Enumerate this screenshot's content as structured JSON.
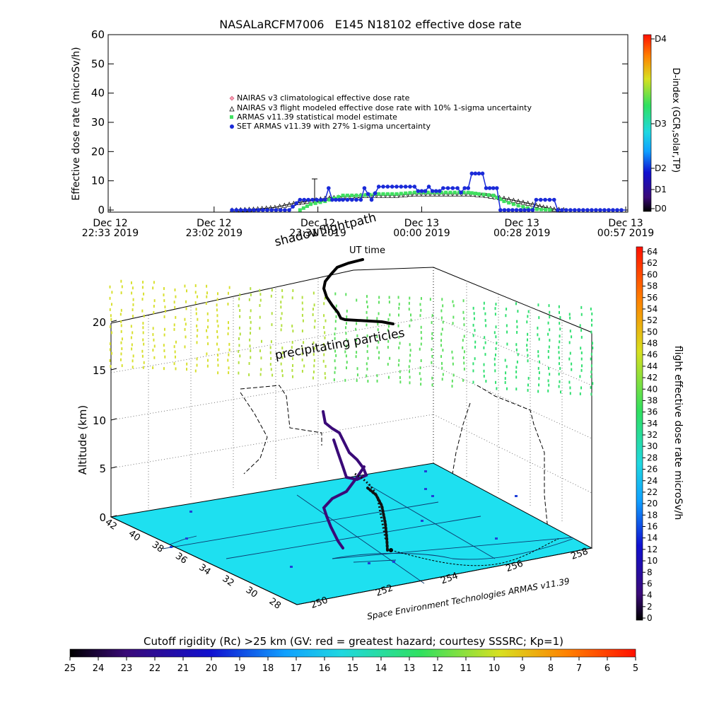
{
  "chart_data": [
    {
      "type": "line",
      "title": "NASALaRCFM7006   E145 N18102 effective dose rate",
      "ylabel": "Effective dose rate (microSv/h)",
      "ylim": [
        0,
        60
      ],
      "yticks": [
        "0",
        "10",
        "20",
        "30",
        "40",
        "50",
        "60"
      ],
      "xticks": [
        {
          "l1": "Dec 12",
          "l2": "22:33 2019"
        },
        {
          "l1": "Dec 12",
          "l2": "23:02 2019"
        },
        {
          "l1": "Dec 12",
          "l2": "23:31 2019"
        },
        {
          "l1": "Dec 13",
          "l2": "00:00 2019"
        },
        {
          "l1": "Dec 13",
          "l2": "00:28 2019"
        },
        {
          "l1": "Dec 13",
          "l2": "00:57 2019"
        }
      ],
      "legend": [
        {
          "label": "NAIRAS v3 climatological effective dose rate",
          "symbol": "pink-diamond"
        },
        {
          "label": "NAIRAS v3 flight modeled effective dose rate with 10% 1-sigma uncertainty",
          "symbol": "triangle"
        },
        {
          "label": "ARMAS v11.39 statistical model estimate",
          "symbol": "green-square"
        },
        {
          "label": "SET ARMAS v11.39 with 27% 1-sigma uncertainty",
          "symbol": "blue-dot"
        }
      ],
      "x_minutes_from_start": [
        0,
        29,
        58,
        87,
        115,
        144
      ],
      "series": [
        {
          "name": "NAIRAS v3 flight modeled effective dose rate with 10% 1-sigma uncertainty",
          "points": [
            [
              34,
              0
            ],
            [
              40,
              0.3
            ],
            [
              46,
              0.9
            ],
            [
              50,
              2
            ],
            [
              55,
              3
            ],
            [
              60,
              4
            ],
            [
              65,
              4.5
            ],
            [
              70,
              5
            ],
            [
              75,
              5
            ],
            [
              80,
              5
            ],
            [
              85,
              5.5
            ],
            [
              90,
              5.5
            ],
            [
              95,
              5.5
            ],
            [
              100,
              5.5
            ],
            [
              105,
              5
            ],
            [
              110,
              4
            ],
            [
              114,
              3
            ],
            [
              118,
              2
            ],
            [
              121,
              1
            ],
            [
              124,
              0.3
            ],
            [
              128,
              0
            ]
          ]
        },
        {
          "name": "ARMAS v11.39 statistical model estimate",
          "points": [
            [
              53,
              0
            ],
            [
              56,
              2
            ],
            [
              60,
              3
            ],
            [
              65,
              5
            ],
            [
              70,
              5
            ],
            [
              75,
              5.5
            ],
            [
              80,
              5.5
            ],
            [
              85,
              6
            ],
            [
              90,
              6
            ],
            [
              95,
              6
            ],
            [
              100,
              6
            ],
            [
              103,
              5.5
            ],
            [
              107,
              5
            ],
            [
              110,
              3
            ],
            [
              114,
              1.5
            ],
            [
              118,
              0.3
            ],
            [
              124,
              0
            ]
          ]
        },
        {
          "name": "SET ARMAS v11.39 with 27% 1-sigma uncertainty",
          "points": [
            [
              34,
              0
            ],
            [
              50,
              0
            ],
            [
              53,
              3.5
            ],
            [
              60,
              3.5
            ],
            [
              61,
              7.5
            ],
            [
              62,
              3.5
            ],
            [
              65,
              3.5
            ],
            [
              70,
              3.5
            ],
            [
              71,
              7.5
            ],
            [
              73,
              3.5
            ],
            [
              75,
              8
            ],
            [
              80,
              8
            ],
            [
              85,
              8
            ],
            [
              86,
              6.5
            ],
            [
              88,
              6.5
            ],
            [
              89,
              8
            ],
            [
              90,
              6.5
            ],
            [
              92,
              6.5
            ],
            [
              93,
              7.5
            ],
            [
              97,
              7.5
            ],
            [
              98,
              6
            ],
            [
              99,
              7.5
            ],
            [
              100,
              7.5
            ],
            [
              101,
              12.5
            ],
            [
              104,
              12.5
            ],
            [
              105,
              7.5
            ],
            [
              108,
              7.5
            ],
            [
              109,
              0
            ],
            [
              118,
              0
            ],
            [
              119,
              3.5
            ],
            [
              124,
              3.5
            ],
            [
              125,
              0
            ],
            [
              144,
              0
            ]
          ]
        }
      ],
      "colorbar": {
        "label": "D-index (GCR,solar,TP)",
        "ticks": [
          "D4",
          "D3",
          "D2",
          "D1",
          "D0"
        ],
        "colors": [
          "#000000",
          "#3a0a78",
          "#1010d0",
          "#10a0ff",
          "#20d8e0",
          "#30e060",
          "#d8e020",
          "#ff8000",
          "#ff1000"
        ]
      }
    },
    {
      "type": "scatter",
      "subtype": "3d",
      "annotations": [
        "shadowflightpath",
        "UT time",
        "precipitating particles"
      ],
      "ylabel": "Altitude (km)",
      "zticks": [
        "0",
        "5",
        "10",
        "15",
        "20"
      ],
      "lat_ticks": [
        "42",
        "40",
        "38",
        "36",
        "34",
        "32",
        "30",
        "28"
      ],
      "lon_ticks": [
        "250",
        "252",
        "254",
        "256",
        "258"
      ],
      "credit": "Space Environment Technologies ARMAS v11.39",
      "colorbar": {
        "label": "flight effective dose rate microSv/h",
        "ticks": [
          "64",
          "62",
          "60",
          "58",
          "56",
          "54",
          "52",
          "50",
          "48",
          "46",
          "44",
          "42",
          "40",
          "38",
          "36",
          "34",
          "32",
          "30",
          "28",
          "26",
          "24",
          "22",
          "20",
          "18",
          "16",
          "14",
          "12",
          "10",
          "8",
          "6",
          "4",
          "2",
          "0"
        ]
      },
      "floor_color": "#1ee0f0"
    },
    {
      "type": "colorbar",
      "title": "Cutoff rigidity (Rc) >25 km (GV: red = greatest hazard; courtesy SSSRC; Kp=1)",
      "ticks": [
        "25",
        "24",
        "23",
        "22",
        "21",
        "20",
        "19",
        "18",
        "17",
        "16",
        "15",
        "14",
        "13",
        "12",
        "11",
        "10",
        "9",
        "8",
        "7",
        "6",
        "5"
      ]
    }
  ]
}
